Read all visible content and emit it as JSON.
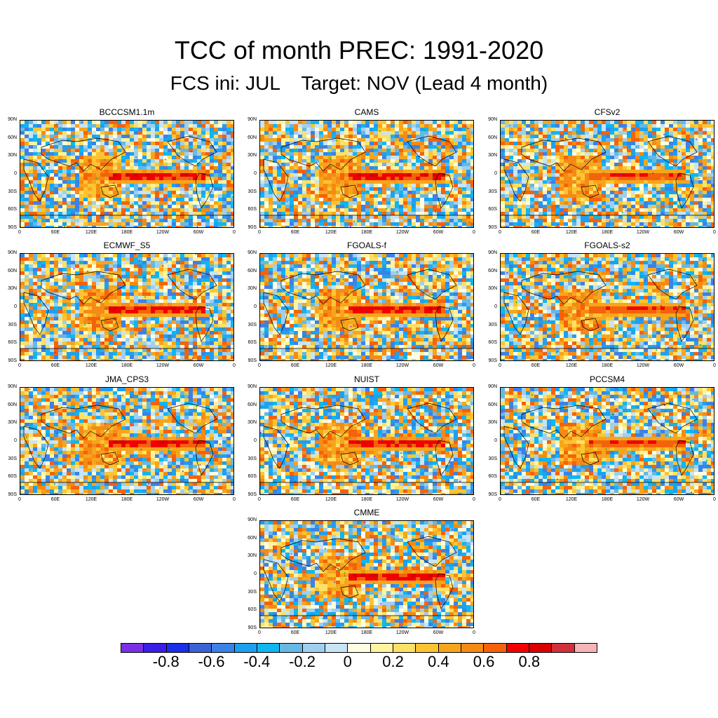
{
  "figure": {
    "title": "TCC of month PREC: 1991-2020",
    "subtitle": "FCS ini: JUL    Target: NOV (Lead 4 month)"
  },
  "axes": {
    "lat_labels": [
      "90N",
      "60N",
      "30N",
      "0",
      "30S",
      "60S",
      "90S"
    ],
    "lon_labels": [
      "0",
      "60E",
      "120E",
      "180E",
      "120W",
      "60W",
      "0"
    ]
  },
  "panels": [
    {
      "name": "BCCCSM1.1m",
      "equatorial_pacific_max": 0.9
    },
    {
      "name": "CAMS",
      "equatorial_pacific_max": 0.9
    },
    {
      "name": "CFSv2",
      "equatorial_pacific_max": 0.8
    },
    {
      "name": "ECMWF_S5",
      "equatorial_pacific_max": 0.9
    },
    {
      "name": "FGOALS-f",
      "equatorial_pacific_max": 0.9
    },
    {
      "name": "FGOALS-s2",
      "equatorial_pacific_max": 0.8
    },
    {
      "name": "JMA_CPS3",
      "equatorial_pacific_max": 0.9
    },
    {
      "name": "NUIST",
      "equatorial_pacific_max": 0.9
    },
    {
      "name": "PCCSM4",
      "equatorial_pacific_max": 0.8
    },
    {
      "name": "CMME",
      "equatorial_pacific_max": 0.9
    }
  ],
  "colorbar": {
    "colors": [
      "#7b2fe6",
      "#3a1ee6",
      "#1a2fe6",
      "#3b63d6",
      "#3b82e6",
      "#1ea0f0",
      "#0fb6f0",
      "#66b8e6",
      "#9fcfef",
      "#c8e4f5",
      "#fffde0",
      "#fff3a0",
      "#fde066",
      "#fbc532",
      "#f7a51c",
      "#f58a14",
      "#f5620a",
      "#f00000",
      "#d80000",
      "#d2303a",
      "#f5b5b8"
    ],
    "tick_labels": [
      "-0.8",
      "-0.6",
      "-0.4",
      "-0.2",
      "0",
      "0.2",
      "0.4",
      "0.6",
      "0.8"
    ]
  }
}
